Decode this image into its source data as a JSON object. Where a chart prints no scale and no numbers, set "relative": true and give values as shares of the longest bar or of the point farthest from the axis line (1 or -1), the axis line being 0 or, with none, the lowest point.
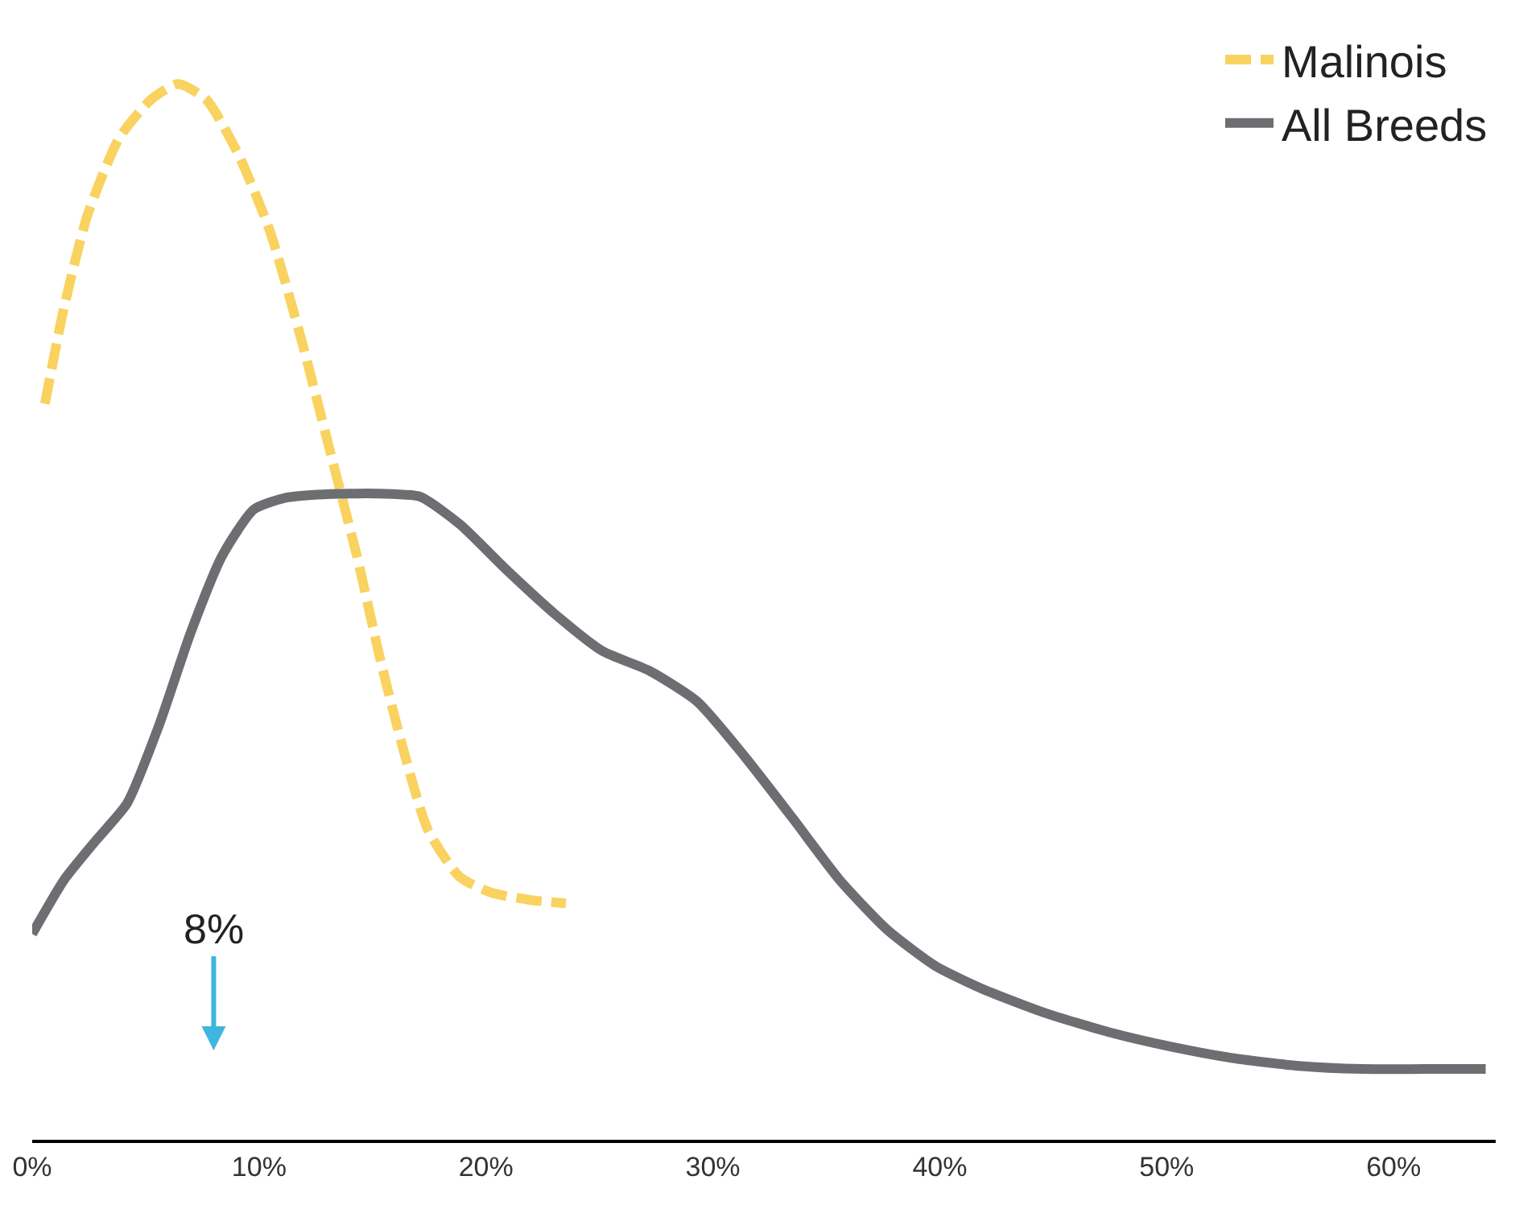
{
  "chart_data": {
    "type": "line",
    "relative": true,
    "legend": "top right",
    "grid": false,
    "marker": "none",
    "xlim": [
      0,
      64.5
    ],
    "xticks": [
      {
        "value": 0,
        "label": "0%"
      },
      {
        "value": 10,
        "label": "10%"
      },
      {
        "value": 20,
        "label": "20%"
      },
      {
        "value": 30,
        "label": "30%"
      },
      {
        "value": 40,
        "label": "40%"
      },
      {
        "value": 50,
        "label": "50%"
      },
      {
        "value": 60,
        "label": "60%"
      }
    ],
    "annotations": [
      "8%"
    ],
    "series": [
      {
        "name": "Malinois",
        "color": "#f9d25f",
        "line_style": "dashed",
        "x": [
          0.56,
          1.4,
          2.44,
          3.84,
          5.23,
          6.42,
          7.68,
          9.07,
          10.47,
          11.86,
          13.26,
          14.31,
          15.35,
          16.4,
          17.45,
          18.84,
          20.24,
          21.98,
          23.52
        ],
        "values": [
          0.697,
          0.788,
          0.876,
          0.949,
          0.985,
          1.0,
          0.985,
          0.934,
          0.861,
          0.758,
          0.641,
          0.553,
          0.454,
          0.366,
          0.293,
          0.249,
          0.234,
          0.227,
          0.224
        ]
      },
      {
        "name": "All Breeds",
        "color": "#6d6e71",
        "line_style": "solid",
        "x": [
          0,
          1.4,
          2.79,
          4.19,
          5.58,
          6.98,
          8.37,
          9.77,
          11.17,
          12.56,
          13.96,
          15.35,
          17.1,
          18.84,
          20.94,
          23.03,
          25.12,
          27.22,
          29.31,
          31.4,
          33.5,
          35.59,
          37.68,
          39.78,
          41.87,
          44.66,
          47.45,
          50.24,
          53.03,
          55.82,
          58.61,
          61.4,
          64.06
        ],
        "values": [
          0.195,
          0.246,
          0.283,
          0.319,
          0.392,
          0.48,
          0.553,
          0.597,
          0.608,
          0.611,
          0.612,
          0.612,
          0.609,
          0.583,
          0.539,
          0.498,
          0.463,
          0.444,
          0.415,
          0.363,
          0.305,
          0.246,
          0.199,
          0.165,
          0.143,
          0.12,
          0.102,
          0.088,
          0.077,
          0.07,
          0.067,
          0.067,
          0.067
        ]
      }
    ]
  }
}
